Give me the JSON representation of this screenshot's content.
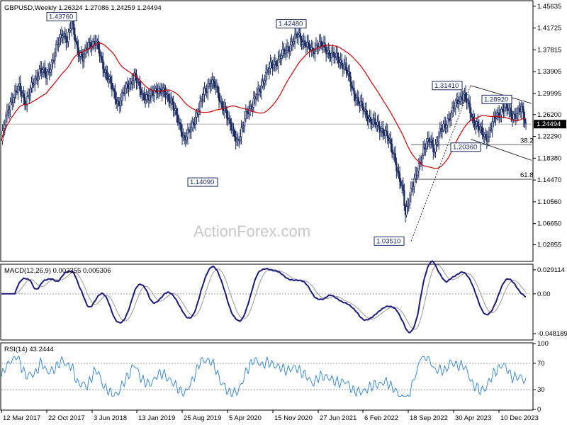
{
  "chart_data": [
    {
      "type": "candlestick",
      "title": "GBPUSD,Weekly  1.26324 1.27086 1.24259 1.24494",
      "ylim": [
        1.0,
        1.465
      ],
      "price_ticks": [
        "1.45635",
        "1.41725",
        "1.37815",
        "1.33905",
        "1.29995",
        "1.26200",
        "1.22290",
        "1.18380",
        "1.14470",
        "1.10560",
        "1.06650",
        "1.02855"
      ],
      "current_price": "1.24494",
      "x_labels": [
        "12 Mar 2017",
        "22 Oct 2017",
        "3 Jun 2018",
        "13 Jan 2019",
        "25 Aug 2019",
        "5 Apr 2020",
        "15 Nov 2020",
        "27 Jun 2021",
        "6 Feb 2022",
        "18 Sep 2022",
        "30 Apr 2023",
        "10 Dec 2023"
      ],
      "annotations": [
        "1.43760",
        "1.42480",
        "1.14090",
        "1.03510",
        "1.31410",
        "1.28920",
        "1.20360"
      ],
      "fib_labels": [
        "38.2",
        "61.8"
      ],
      "watermark": "ActionForex.com",
      "close_path": [
        [
          0,
          1.215
        ],
        [
          4,
          1.255
        ],
        [
          9,
          1.29
        ],
        [
          16,
          1.31
        ],
        [
          22,
          1.285
        ],
        [
          29,
          1.32
        ],
        [
          35,
          1.345
        ],
        [
          40,
          1.33
        ],
        [
          46,
          1.36
        ],
        [
          50,
          1.385
        ],
        [
          55,
          1.41
        ],
        [
          59,
          1.395
        ],
        [
          63,
          1.425
        ],
        [
          66,
          1.4
        ],
        [
          69,
          1.375
        ],
        [
          73,
          1.36
        ],
        [
          78,
          1.39
        ],
        [
          85,
          1.39
        ],
        [
          92,
          1.345
        ],
        [
          99,
          1.31
        ],
        [
          105,
          1.28
        ],
        [
          112,
          1.31
        ],
        [
          119,
          1.33
        ],
        [
          126,
          1.3
        ],
        [
          132,
          1.29
        ],
        [
          139,
          1.31
        ],
        [
          145,
          1.3
        ],
        [
          152,
          1.29
        ],
        [
          158,
          1.25
        ],
        [
          164,
          1.22
        ],
        [
          170,
          1.235
        ],
        [
          176,
          1.27
        ],
        [
          182,
          1.3
        ],
        [
          188,
          1.325
        ],
        [
          192,
          1.31
        ],
        [
          196,
          1.285
        ],
        [
          200,
          1.275
        ],
        [
          204,
          1.245
        ],
        [
          208,
          1.23
        ],
        [
          212,
          1.215
        ],
        [
          216,
          1.235
        ],
        [
          220,
          1.27
        ],
        [
          225,
          1.28
        ],
        [
          230,
          1.3
        ],
        [
          236,
          1.33
        ],
        [
          242,
          1.35
        ],
        [
          248,
          1.36
        ],
        [
          254,
          1.375
        ],
        [
          260,
          1.39
        ],
        [
          266,
          1.405
        ],
        [
          272,
          1.39
        ],
        [
          278,
          1.375
        ],
        [
          284,
          1.39
        ],
        [
          290,
          1.38
        ],
        [
          296,
          1.37
        ],
        [
          302,
          1.36
        ],
        [
          308,
          1.35
        ],
        [
          314,
          1.31
        ],
        [
          320,
          1.285
        ],
        [
          326,
          1.265
        ],
        [
          332,
          1.25
        ],
        [
          338,
          1.24
        ],
        [
          344,
          1.23
        ],
        [
          348,
          1.21
        ],
        [
          352,
          1.19
        ],
        [
          356,
          1.15
        ],
        [
          360,
          1.12
        ],
        [
          362,
          1.085
        ],
        [
          366,
          1.12
        ],
        [
          370,
          1.14
        ],
        [
          374,
          1.17
        ],
        [
          378,
          1.2
        ],
        [
          384,
          1.215
        ],
        [
          388,
          1.2
        ],
        [
          392,
          1.225
        ],
        [
          398,
          1.245
        ],
        [
          402,
          1.26
        ],
        [
          406,
          1.275
        ],
        [
          410,
          1.29
        ],
        [
          414,
          1.3
        ],
        [
          418,
          1.28
        ],
        [
          422,
          1.255
        ],
        [
          426,
          1.245
        ],
        [
          430,
          1.23
        ],
        [
          434,
          1.22
        ],
        [
          438,
          1.235
        ],
        [
          442,
          1.255
        ],
        [
          446,
          1.265
        ],
        [
          450,
          1.275
        ],
        [
          454,
          1.27
        ],
        [
          458,
          1.26
        ],
        [
          462,
          1.265
        ],
        [
          466,
          1.27
        ],
        [
          470,
          1.245
        ]
      ],
      "macd_ticks": [
        "0.029114",
        "0.00",
        "-0.048189"
      ],
      "rsi_ticks": [
        "100",
        "70",
        "30",
        "0"
      ],
      "macd_label": "MACD(12,26,9)  0.002355 0.005306",
      "rsi_label": "RSI(14) 43.2444"
    }
  ]
}
